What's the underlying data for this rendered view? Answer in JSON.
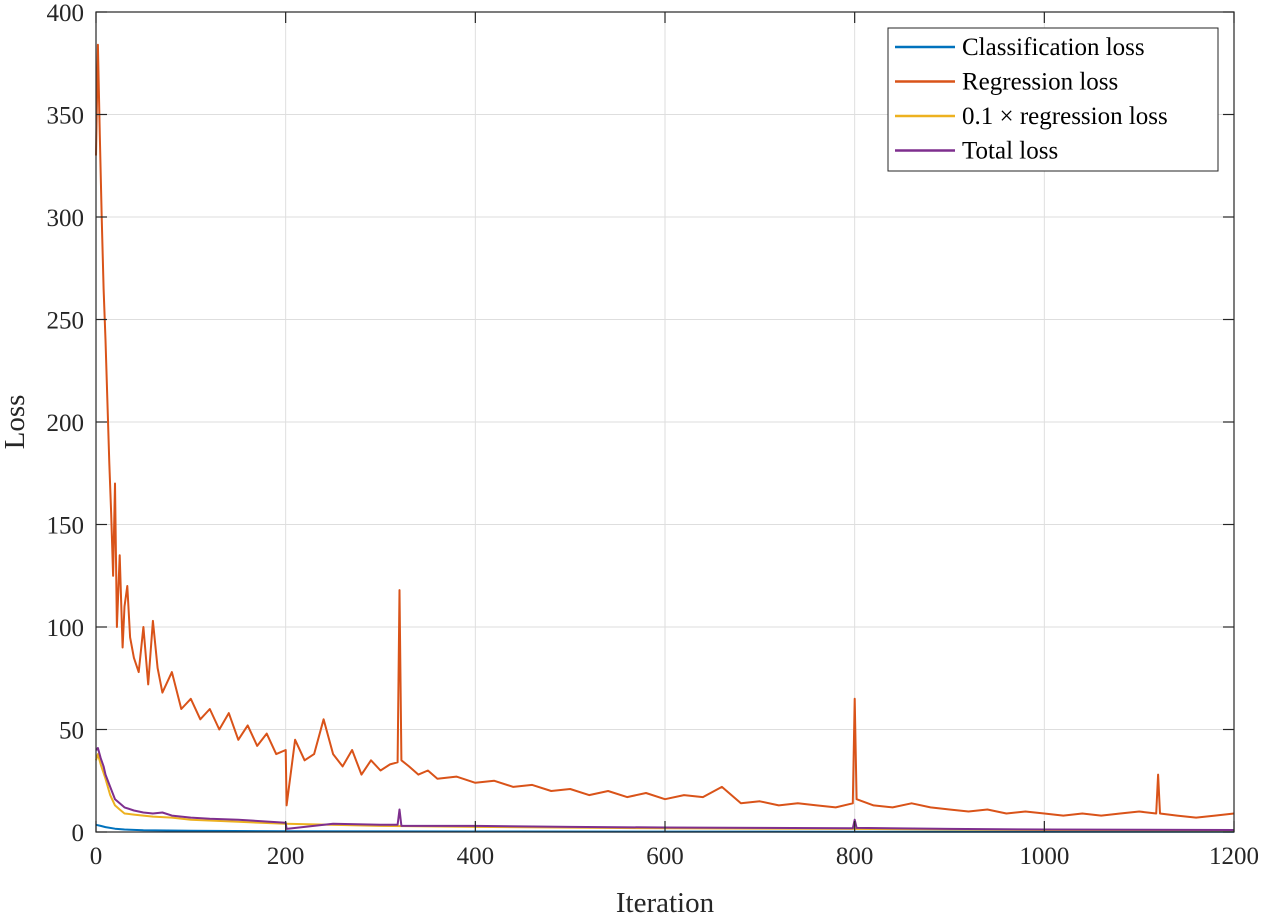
{
  "chart_data": {
    "type": "line",
    "xlabel": "Iteration",
    "ylabel": "Loss",
    "xlim": [
      0,
      1200
    ],
    "ylim": [
      0,
      400
    ],
    "xticks": [
      0,
      200,
      400,
      600,
      800,
      1000,
      1200
    ],
    "yticks": [
      0,
      50,
      100,
      150,
      200,
      250,
      300,
      350,
      400
    ],
    "xtick_labels": [
      "0",
      "200",
      "400",
      "600",
      "800",
      "1000",
      "1200"
    ],
    "ytick_labels": [
      "0",
      "50",
      "100",
      "150",
      "200",
      "250",
      "300",
      "350",
      "400"
    ],
    "grid": true,
    "legend_position": "top-right",
    "series": [
      {
        "name": "Classification loss",
        "color": "#0072BD",
        "x": [
          0,
          5,
          10,
          20,
          30,
          50,
          100,
          200,
          300,
          400,
          600,
          800,
          1000,
          1200
        ],
        "y": [
          3.5,
          3.0,
          2.4,
          1.6,
          1.2,
          0.9,
          0.6,
          0.4,
          0.3,
          0.25,
          0.2,
          0.15,
          0.12,
          0.1
        ]
      },
      {
        "name": "Regression loss",
        "color": "#D95319",
        "x": [
          0,
          2,
          4,
          6,
          8,
          10,
          12,
          14,
          16,
          18,
          20,
          22,
          25,
          28,
          30,
          33,
          36,
          40,
          45,
          50,
          55,
          60,
          65,
          70,
          80,
          90,
          100,
          110,
          120,
          130,
          140,
          150,
          160,
          170,
          180,
          190,
          200,
          201,
          210,
          220,
          230,
          240,
          250,
          260,
          270,
          280,
          290,
          300,
          310,
          318,
          320,
          322,
          330,
          340,
          350,
          360,
          380,
          400,
          420,
          440,
          460,
          480,
          500,
          520,
          540,
          560,
          580,
          600,
          620,
          640,
          660,
          680,
          700,
          720,
          740,
          760,
          780,
          798,
          800,
          802,
          820,
          840,
          860,
          880,
          900,
          920,
          940,
          960,
          980,
          1000,
          1020,
          1040,
          1060,
          1080,
          1100,
          1118,
          1120,
          1122,
          1140,
          1160,
          1180,
          1200
        ],
        "y": [
          330,
          384,
          340,
          300,
          265,
          240,
          210,
          180,
          155,
          125,
          170,
          100,
          135,
          90,
          110,
          120,
          95,
          85,
          78,
          100,
          72,
          103,
          80,
          68,
          78,
          60,
          65,
          55,
          60,
          50,
          58,
          45,
          52,
          42,
          48,
          38,
          40,
          13,
          45,
          35,
          38,
          55,
          38,
          32,
          40,
          28,
          35,
          30,
          33,
          34,
          118,
          35,
          32,
          28,
          30,
          26,
          27,
          24,
          25,
          22,
          23,
          20,
          21,
          18,
          20,
          17,
          19,
          16,
          18,
          17,
          22,
          14,
          15,
          13,
          14,
          13,
          12,
          14,
          65,
          16,
          13,
          12,
          14,
          12,
          11,
          10,
          11,
          9,
          10,
          9,
          8,
          9,
          8,
          9,
          10,
          9,
          28,
          9,
          8,
          7,
          8,
          9
        ]
      },
      {
        "name": "0.1 × regression loss",
        "color": "#EDB120",
        "x": [
          0,
          2,
          5,
          10,
          15,
          20,
          25,
          30,
          40,
          50,
          60,
          80,
          100,
          150,
          200,
          300,
          400,
          600,
          800,
          1000,
          1200
        ],
        "y": [
          35,
          38,
          33,
          26,
          18,
          13,
          11,
          9,
          8.5,
          8,
          7.5,
          7,
          6,
          5,
          4,
          3,
          2.5,
          1.8,
          1.5,
          1.0,
          0.9
        ]
      },
      {
        "name": "Total loss",
        "color": "#7E2F8E",
        "x": [
          0,
          2,
          5,
          8,
          10,
          15,
          20,
          25,
          30,
          40,
          50,
          60,
          70,
          80,
          100,
          120,
          150,
          200,
          201,
          250,
          300,
          318,
          320,
          322,
          400,
          500,
          600,
          700,
          798,
          800,
          802,
          900,
          1000,
          1100,
          1200
        ],
        "y": [
          40,
          41,
          36,
          32,
          28,
          22,
          16,
          14,
          12,
          10.5,
          9.5,
          9,
          9.5,
          8,
          7,
          6.5,
          6,
          4.5,
          1.5,
          4,
          3.5,
          3.5,
          11,
          3,
          3,
          2.5,
          2.2,
          2,
          1.8,
          6,
          2,
          1.5,
          1.2,
          1.1,
          1
        ]
      }
    ]
  }
}
